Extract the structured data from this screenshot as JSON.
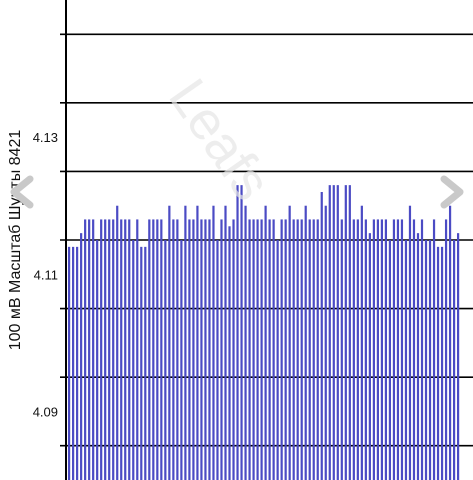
{
  "watermark": "Leafs",
  "chart_data": {
    "type": "bar",
    "title": "",
    "xlabel": "",
    "ylabel": "100 мВ Масштаб  Шунты 8421",
    "ylim": [
      4.08,
      4.15
    ],
    "yticks": [
      4.09,
      4.11,
      4.13
    ],
    "ytick_labels": [
      "4.09",
      "4.11",
      "4.13"
    ],
    "grid": "horizontal",
    "bar_color": "#4b4bc4",
    "series": [
      {
        "values": [
          4.114,
          4.114,
          4.114,
          4.116,
          4.118,
          4.118,
          4.118,
          4.115,
          4.118,
          4.118,
          4.118,
          4.118,
          4.12,
          4.118,
          4.118,
          4.118,
          4.115,
          4.118,
          4.114,
          4.114,
          4.118,
          4.118,
          4.118,
          4.118,
          4.115,
          4.12,
          4.118,
          4.118,
          4.115,
          4.12,
          4.118,
          4.118,
          4.12,
          4.118,
          4.118,
          4.118,
          4.12,
          4.115,
          4.118,
          4.12,
          4.117,
          4.118,
          4.123,
          4.123,
          4.12,
          4.118,
          4.118,
          4.118,
          4.118,
          4.12,
          4.118,
          4.118,
          4.115,
          4.118,
          4.118,
          4.12,
          4.118,
          4.118,
          4.118,
          4.12,
          4.118,
          4.118,
          4.118,
          4.122,
          4.12,
          4.123,
          4.123,
          4.123,
          4.118,
          4.123,
          4.123,
          4.118,
          4.118,
          4.12,
          4.118,
          4.116,
          4.118,
          4.118,
          4.118,
          4.118,
          4.115,
          4.118,
          4.118,
          4.118,
          4.115,
          4.12,
          4.118,
          4.116,
          4.118,
          4.115,
          4.115,
          4.118,
          4.114,
          4.114,
          4.118,
          4.12,
          4.115,
          4.116
        ]
      }
    ]
  }
}
